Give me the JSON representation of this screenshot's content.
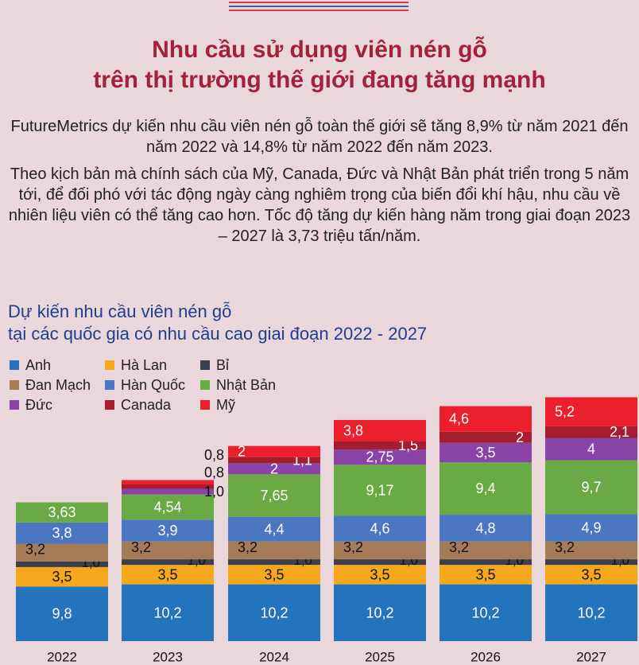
{
  "header": {
    "title_line1": "Nhu cầu sử dụng viên nén gỗ",
    "title_line2": "trên thị trường thế giới đang tăng mạnh",
    "paragraph1": "FutureMetrics dự kiến nhu cầu viên nén gỗ toàn thế giới sẽ tăng 8,9% từ năm 2021 đến năm 2022 và 14,8% từ năm 2022 đến năm 2023.",
    "paragraph2": "Theo kịch bản mà chính sách của Mỹ, Canada, Đức và Nhật Bản phát triển trong 5 năm tới, để đối phó với tác động ngày càng nghiêm trọng của biến đổi khí hậu, nhu cầu về nhiên liệu viên có thể tăng cao hơn. Tốc độ tăng dự kiến hàng năm trong giai đoạn 2023 – 2027 là 3,73 triệu tấn/năm."
  },
  "colors": {
    "background": "#e9d7dc",
    "title": "#a3213a",
    "chart_title": "#1f3e8c",
    "stripe_red": "#d63a4b",
    "stripe_blue": "#3d5fb2"
  },
  "chart_data": {
    "type": "bar",
    "stacked": true,
    "title_line1": "Dự kiến nhu cầu viên nén gỗ",
    "title_line2": "tại các quốc gia có nhu cầu cao giai đoạn 2022 - 2027",
    "xlabel": "",
    "ylabel": "",
    "grid": false,
    "legend_position": "top-left",
    "categories": [
      "2022",
      "2023",
      "2024",
      "2025",
      "2026",
      "2027"
    ],
    "series": [
      {
        "name": "Anh",
        "color": "#2374bd",
        "values": [
          9.8,
          10.2,
          10.2,
          10.2,
          10.2,
          10.2
        ],
        "labels": [
          "9,8",
          "10,2",
          "10,2",
          "10,2",
          "10,2",
          "10,2"
        ]
      },
      {
        "name": "Hà Lan",
        "color": "#f5a81c",
        "values": [
          3.5,
          3.5,
          3.5,
          3.5,
          3.5,
          3.5
        ],
        "labels": [
          "3,5",
          "3,5",
          "3,5",
          "3,5",
          "3,5",
          "3,5"
        ]
      },
      {
        "name": "Bỉ",
        "color": "#3b3f4e",
        "values": [
          1.0,
          1.0,
          1.0,
          1.0,
          1.0,
          1.0
        ],
        "labels": [
          "1,0",
          "1,0",
          "1,0",
          "1,0",
          "1,0",
          "1,0"
        ]
      },
      {
        "name": "Đan Mạch",
        "color": "#a57c58",
        "values": [
          3.2,
          3.2,
          3.2,
          3.2,
          3.2,
          3.2
        ],
        "labels": [
          "3,2",
          "3,2",
          "3,2",
          "3,2",
          "3,2",
          "3,2"
        ]
      },
      {
        "name": "Hàn Quốc",
        "color": "#4a76c2",
        "values": [
          3.8,
          3.9,
          4.4,
          4.6,
          4.8,
          4.9
        ],
        "labels": [
          "3,8",
          "3,9",
          "4,4",
          "4,6",
          "4,8",
          "4,9"
        ]
      },
      {
        "name": "Nhật Bản",
        "color": "#6aaa45",
        "values": [
          3.63,
          4.54,
          7.65,
          9.17,
          9.4,
          9.7
        ],
        "labels": [
          "3,63",
          "4,54",
          "7,65",
          "9,17",
          "9,4",
          "9,7"
        ]
      },
      {
        "name": "Đức",
        "color": "#8a44a8",
        "values": [
          0,
          1.0,
          2,
          2.75,
          3.5,
          4
        ],
        "labels": [
          "",
          "1,0",
          "2",
          "2,75",
          "3,5",
          "4"
        ]
      },
      {
        "name": "Canada",
        "color": "#a61e2e",
        "values": [
          0,
          0.8,
          1.1,
          1.5,
          2,
          2.1
        ],
        "labels": [
          "",
          "0,8",
          "1,1",
          "1,5",
          "2",
          "2,1"
        ]
      },
      {
        "name": "Mỹ",
        "color": "#ec1f2d",
        "values": [
          0,
          0.8,
          2,
          3.8,
          4.6,
          5.2
        ],
        "labels": [
          "",
          "0,8",
          "2",
          "3,8",
          "4,6",
          "5,2"
        ]
      }
    ]
  }
}
